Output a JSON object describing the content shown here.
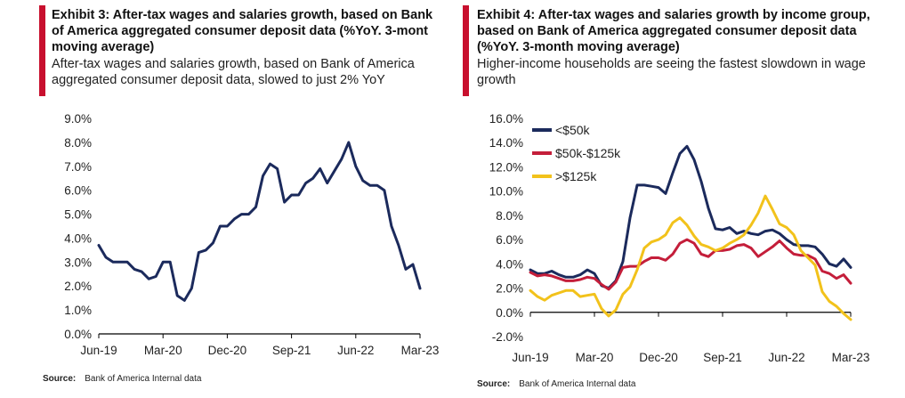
{
  "colors": {
    "accent": "#c8102e",
    "navy": "#1b2a5c",
    "crimson": "#c41e3a",
    "gold": "#f2c21b"
  },
  "exhibit3": {
    "title": "Exhibit 3: After-tax wages and salaries growth, based on Bank of America aggregated consumer deposit data (%YoY. 3-mont moving average)",
    "subtitle": "After-tax wages and salaries growth, based on Bank of America aggregated consumer deposit data, slowed to just 2% YoY",
    "source_label": "Source:",
    "source_text": "Bank of America Internal data"
  },
  "exhibit4": {
    "title": "Exhibit 4: After-tax wages and salaries growth by income group, based on Bank  of America aggregated consumer deposit data (%YoY. 3-month moving average)",
    "subtitle": "Higher-income households are seeing the fastest slowdown in wage growth",
    "source_label": "Source:",
    "source_text": "Bank of America Internal data"
  },
  "chart_data": [
    {
      "type": "line",
      "ylim": [
        0,
        9
      ],
      "y_ticks": [
        "0.0%",
        "1.0%",
        "2.0%",
        "3.0%",
        "4.0%",
        "5.0%",
        "6.0%",
        "7.0%",
        "8.0%",
        "9.0%"
      ],
      "x_ticks": [
        "Jun-19",
        "Mar-20",
        "Dec-20",
        "Sep-21",
        "Jun-22",
        "Mar-23"
      ],
      "grid": false,
      "x": [
        "2019-06",
        "2019-07",
        "2019-08",
        "2019-09",
        "2019-10",
        "2019-11",
        "2019-12",
        "2020-01",
        "2020-02",
        "2020-03",
        "2020-04",
        "2020-05",
        "2020-06",
        "2020-07",
        "2020-08",
        "2020-09",
        "2020-10",
        "2020-11",
        "2020-12",
        "2021-01",
        "2021-02",
        "2021-03",
        "2021-04",
        "2021-05",
        "2021-06",
        "2021-07",
        "2021-08",
        "2021-09",
        "2021-10",
        "2021-11",
        "2021-12",
        "2022-01",
        "2022-02",
        "2022-03",
        "2022-04",
        "2022-05",
        "2022-06",
        "2022-07",
        "2022-08",
        "2022-09",
        "2022-10",
        "2022-11",
        "2022-12",
        "2023-01",
        "2023-02",
        "2023-03"
      ],
      "series": [
        {
          "values": [
            3.7,
            3.2,
            3.0,
            3.0,
            3.0,
            2.7,
            2.6,
            2.3,
            2.4,
            3.0,
            3.0,
            1.6,
            1.4,
            1.9,
            3.4,
            3.5,
            3.8,
            4.5,
            4.5,
            4.8,
            5.0,
            5.0,
            5.3,
            6.6,
            7.1,
            6.9,
            5.5,
            5.8,
            5.8,
            6.3,
            6.5,
            6.9,
            6.3,
            6.8,
            7.3,
            8.0,
            7.0,
            6.4,
            6.2,
            6.2,
            6.0,
            4.5,
            3.7,
            2.7,
            2.9,
            1.9
          ]
        }
      ]
    },
    {
      "type": "line",
      "ylim": [
        -2,
        16
      ],
      "y_ticks": [
        "-2.0%",
        "0.0%",
        "2.0%",
        "4.0%",
        "6.0%",
        "8.0%",
        "10.0%",
        "12.0%",
        "14.0%",
        "16.0%"
      ],
      "x_ticks": [
        "Jun-19",
        "Mar-20",
        "Dec-20",
        "Sep-21",
        "Jun-22",
        "Mar-23"
      ],
      "legend": "top-left",
      "grid": false,
      "x": [
        "2019-06",
        "2019-07",
        "2019-08",
        "2019-09",
        "2019-10",
        "2019-11",
        "2019-12",
        "2020-01",
        "2020-02",
        "2020-03",
        "2020-04",
        "2020-05",
        "2020-06",
        "2020-07",
        "2020-08",
        "2020-09",
        "2020-10",
        "2020-11",
        "2020-12",
        "2021-01",
        "2021-02",
        "2021-03",
        "2021-04",
        "2021-05",
        "2021-06",
        "2021-07",
        "2021-08",
        "2021-09",
        "2021-10",
        "2021-11",
        "2021-12",
        "2022-01",
        "2022-02",
        "2022-03",
        "2022-04",
        "2022-05",
        "2022-06",
        "2022-07",
        "2022-08",
        "2022-09",
        "2022-10",
        "2022-11",
        "2022-12",
        "2023-01",
        "2023-02",
        "2023-03"
      ],
      "series": [
        {
          "name": "<$50k",
          "color": "#1b2a5c",
          "values": [
            3.5,
            3.2,
            3.2,
            3.4,
            3.1,
            2.9,
            2.9,
            3.1,
            3.5,
            3.2,
            2.2,
            2.0,
            2.6,
            4.2,
            7.8,
            10.5,
            10.5,
            10.4,
            10.3,
            9.8,
            11.5,
            13.1,
            13.7,
            12.6,
            10.8,
            8.6,
            6.9,
            6.8,
            7.0,
            6.5,
            6.7,
            6.5,
            6.4,
            6.7,
            6.8,
            6.5,
            6.0,
            5.6,
            5.5,
            5.5,
            5.4,
            4.8,
            4.0,
            3.8,
            4.4,
            3.7
          ]
        },
        {
          "name": "$50k-$125k",
          "color": "#c41e3a",
          "values": [
            3.3,
            3.0,
            3.1,
            3.0,
            2.8,
            2.6,
            2.6,
            2.7,
            2.9,
            2.8,
            2.3,
            1.9,
            2.5,
            3.7,
            3.8,
            3.8,
            4.2,
            4.5,
            4.5,
            4.3,
            4.8,
            5.7,
            6.0,
            5.7,
            4.8,
            4.6,
            5.1,
            5.1,
            5.2,
            5.5,
            5.6,
            5.3,
            4.6,
            5.0,
            5.4,
            5.9,
            5.3,
            4.8,
            4.7,
            4.7,
            4.4,
            3.4,
            3.2,
            2.8,
            3.1,
            2.4
          ]
        },
        {
          "name": ">$125k",
          "color": "#f2c21b",
          "values": [
            1.8,
            1.3,
            1.0,
            1.4,
            1.6,
            1.8,
            1.8,
            1.3,
            1.4,
            1.5,
            0.3,
            -0.3,
            0.2,
            1.5,
            2.1,
            3.5,
            5.3,
            5.8,
            6.0,
            6.4,
            7.4,
            7.8,
            7.2,
            6.3,
            5.6,
            5.4,
            5.1,
            5.3,
            5.7,
            6.0,
            6.4,
            7.2,
            8.2,
            9.6,
            8.5,
            7.3,
            7.0,
            6.4,
            5.1,
            4.5,
            3.9,
            1.7,
            0.9,
            0.5,
            -0.1,
            -0.6
          ]
        }
      ]
    }
  ]
}
